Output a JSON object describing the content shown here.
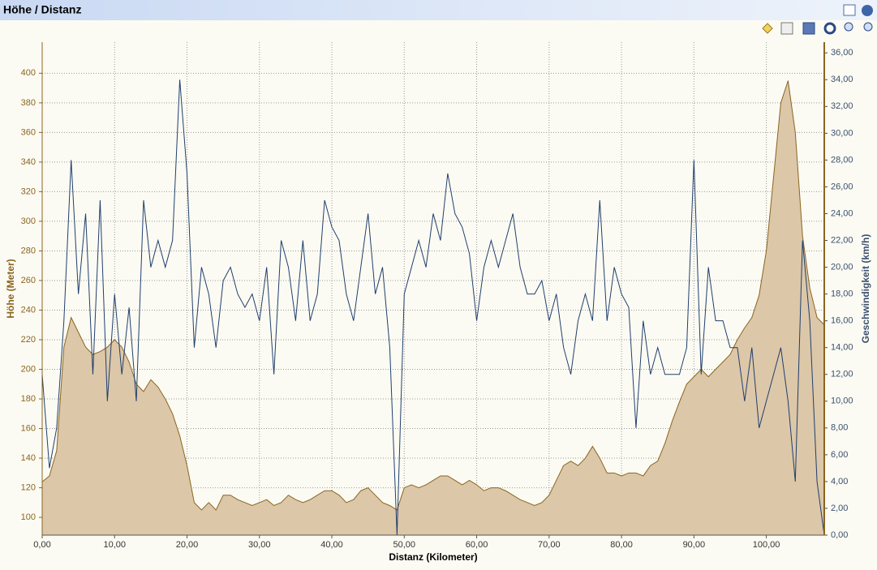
{
  "window_title": "Höhe / Distanz",
  "chart_data": {
    "type": "combo",
    "x_label": "Distanz (Kilometer)",
    "y_label": "Höhe (Meter)",
    "y2_label": "Geschwindigkeit (km/h)",
    "x": [
      0,
      1,
      2,
      3,
      4,
      5,
      6,
      7,
      8,
      9,
      10,
      11,
      12,
      13,
      14,
      15,
      16,
      17,
      18,
      19,
      20,
      21,
      22,
      23,
      24,
      25,
      26,
      27,
      28,
      29,
      30,
      31,
      32,
      33,
      34,
      35,
      36,
      37,
      38,
      39,
      40,
      41,
      42,
      43,
      44,
      45,
      46,
      47,
      48,
      49,
      50,
      51,
      52,
      53,
      54,
      55,
      56,
      57,
      58,
      59,
      60,
      61,
      62,
      63,
      64,
      65,
      66,
      67,
      68,
      69,
      70,
      71,
      72,
      73,
      74,
      75,
      76,
      77,
      78,
      79,
      80,
      81,
      82,
      83,
      84,
      85,
      86,
      87,
      88,
      89,
      90,
      91,
      92,
      93,
      94,
      95,
      96,
      97,
      98,
      99,
      100,
      101,
      102,
      103,
      104,
      105,
      106,
      107,
      108
    ],
    "series": [
      {
        "type": "area",
        "color": "#8a6520",
        "fill": "#dcc7a8",
        "axis": "y",
        "values": [
          124,
          128,
          145,
          215,
          235,
          225,
          215,
          210,
          212,
          215,
          220,
          215,
          205,
          190,
          185,
          193,
          188,
          180,
          170,
          155,
          135,
          110,
          105,
          110,
          105,
          115,
          115,
          112,
          110,
          108,
          110,
          112,
          108,
          110,
          115,
          112,
          110,
          112,
          115,
          118,
          118,
          115,
          110,
          112,
          118,
          120,
          115,
          110,
          108,
          105,
          120,
          122,
          120,
          122,
          125,
          128,
          128,
          125,
          122,
          125,
          122,
          118,
          120,
          120,
          118,
          115,
          112,
          110,
          108,
          110,
          115,
          125,
          135,
          138,
          135,
          140,
          148,
          140,
          130,
          130,
          128,
          130,
          130,
          128,
          135,
          138,
          150,
          165,
          178,
          190,
          195,
          200,
          195,
          200,
          205,
          210,
          220,
          228,
          235,
          250,
          280,
          330,
          380,
          395,
          360,
          290,
          255,
          235,
          230
        ]
      },
      {
        "type": "line",
        "color": "#1f3f6e",
        "axis": "y2",
        "values": [
          12,
          5,
          8,
          16,
          28,
          18,
          24,
          12,
          25,
          10,
          18,
          12,
          17,
          10,
          25,
          20,
          22,
          20,
          22,
          34,
          27,
          14,
          20,
          18,
          14,
          19,
          20,
          18,
          17,
          18,
          16,
          20,
          12,
          22,
          20,
          16,
          22,
          16,
          18,
          25,
          23,
          22,
          18,
          16,
          20,
          24,
          18,
          20,
          14,
          0,
          18,
          20,
          22,
          20,
          24,
          22,
          27,
          24,
          23,
          21,
          16,
          20,
          22,
          20,
          22,
          24,
          20,
          18,
          18,
          19,
          16,
          18,
          14,
          12,
          16,
          18,
          16,
          25,
          16,
          20,
          18,
          17,
          8,
          16,
          12,
          14,
          12,
          12,
          12,
          14,
          28,
          12,
          20,
          16,
          16,
          14,
          14,
          10,
          14,
          8,
          10,
          12,
          14,
          10,
          4,
          22,
          16,
          4,
          0
        ]
      }
    ],
    "xlim": [
      0,
      108
    ],
    "ylim": [
      88,
      421
    ],
    "y2lim": [
      0,
      36.8
    ],
    "xticks": [
      {
        "value": 0,
        "label": "0,00"
      },
      {
        "value": 10,
        "label": "10,00"
      },
      {
        "value": 20,
        "label": "20,00"
      },
      {
        "value": 30,
        "label": "30,00"
      },
      {
        "value": 40,
        "label": "40,00"
      },
      {
        "value": 50,
        "label": "50,00"
      },
      {
        "value": 60,
        "label": "60,00"
      },
      {
        "value": 70,
        "label": "70,00"
      },
      {
        "value": 80,
        "label": "80,00"
      },
      {
        "value": 90,
        "label": "90,00"
      },
      {
        "value": 100,
        "label": "100,00"
      }
    ],
    "yticks": [
      100,
      120,
      140,
      160,
      180,
      200,
      220,
      240,
      260,
      280,
      300,
      320,
      340,
      360,
      380,
      400
    ],
    "y2ticks": [
      {
        "value": 0,
        "label": "0,00"
      },
      {
        "value": 2,
        "label": "2,00"
      },
      {
        "value": 4,
        "label": "4,00"
      },
      {
        "value": 6,
        "label": "6,00"
      },
      {
        "value": 8,
        "label": "8,00"
      },
      {
        "value": 10,
        "label": "10,00"
      },
      {
        "value": 12,
        "label": "12,00"
      },
      {
        "value": 14,
        "label": "14,00"
      },
      {
        "value": 16,
        "label": "16,00"
      },
      {
        "value": 18,
        "label": "18,00"
      },
      {
        "value": 20,
        "label": "20,00"
      },
      {
        "value": 22,
        "label": "22,00"
      },
      {
        "value": 24,
        "label": "24,00"
      },
      {
        "value": 26,
        "label": "26,00"
      },
      {
        "value": 28,
        "label": "28,00"
      },
      {
        "value": 30,
        "label": "30,00"
      },
      {
        "value": 32,
        "label": "32,00"
      },
      {
        "value": 34,
        "label": "34,00"
      },
      {
        "value": 36,
        "label": "36,00"
      }
    ],
    "grid": true
  }
}
